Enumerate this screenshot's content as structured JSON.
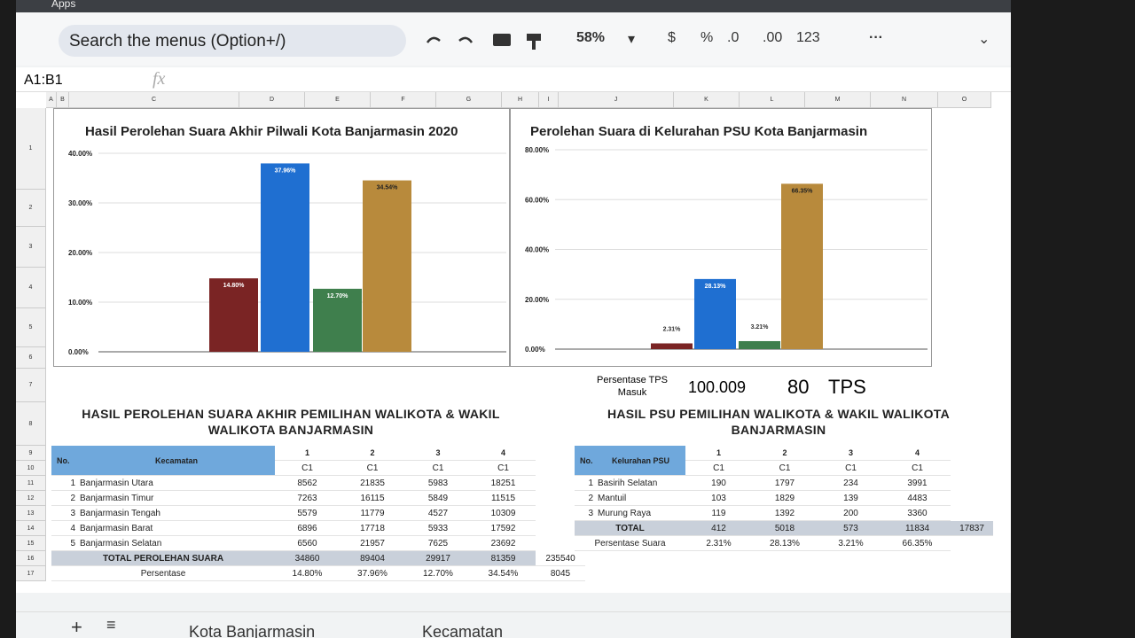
{
  "browser": {
    "bookmarks": [
      "Apps"
    ]
  },
  "toolbar": {
    "search": "Search the menus (Option+/)",
    "zoom": "58%",
    "format_buttons": [
      "$",
      "%",
      ".0",
      ".00",
      "123"
    ]
  },
  "formula_bar": {
    "name_box": "A1:B1",
    "fx": "fx"
  },
  "columns": [
    "A",
    "B",
    "C",
    "D",
    "E",
    "F",
    "G",
    "H",
    "I",
    "J",
    "K",
    "L",
    "M",
    "N",
    "O"
  ],
  "rows": [
    "1",
    "2",
    "3",
    "4",
    "5",
    "6",
    "7",
    "8",
    "9",
    "10",
    "11",
    "12",
    "13",
    "14",
    "15",
    "16",
    "17"
  ],
  "charts": [
    {
      "type": "bar",
      "title": "Hasil Perolehan Suara Akhir Pilwali Kota Banjarmasin 2020",
      "values": [
        14.8,
        37.96,
        12.7,
        34.54
      ],
      "value_labels": [
        "14.80%",
        "37.96%",
        "12.70%",
        "34.54%"
      ],
      "colors": [
        "#7a2424",
        "#1f6fd1",
        "#3f7f4d",
        "#b88a3c"
      ],
      "ylim": [
        0,
        40
      ],
      "yticks": [
        {
          "value": 0,
          "label": "0.00%"
        },
        {
          "value": 10,
          "label": "10.00%"
        },
        {
          "value": 20,
          "label": "20.00%"
        },
        {
          "value": 30,
          "label": "30.00%"
        },
        {
          "value": 40,
          "label": "40.00%"
        }
      ],
      "grid": true
    },
    {
      "type": "bar",
      "title": "Perolehan Suara di Kelurahan PSU Kota Banjarmasin",
      "values": [
        2.31,
        28.13,
        3.21,
        66.35
      ],
      "value_labels": [
        "2.31%",
        "28.13%",
        "3.21%",
        "66.35%"
      ],
      "colors": [
        "#7a2424",
        "#1f6fd1",
        "#3f7f4d",
        "#b88a3c"
      ],
      "ylim": [
        0,
        80
      ],
      "yticks": [
        {
          "value": 0,
          "label": "0.00%"
        },
        {
          "value": 20,
          "label": "20.00%"
        },
        {
          "value": 40,
          "label": "40.00%"
        },
        {
          "value": 60,
          "label": "60.00%"
        },
        {
          "value": 80,
          "label": "80.00%"
        }
      ],
      "grid": true
    }
  ],
  "tps": {
    "label": "Persentase TPS Masuk",
    "percent": "100.009",
    "count": "80",
    "unit": "TPS"
  },
  "tables": [
    {
      "title": "HASIL PEROLEHAN SUARA AKHIR PEMILIHAN WALIKOTA & WAKIL WALIKOTA BANJARMASIN",
      "header": [
        "No.",
        "Kecamatan"
      ],
      "candidates": [
        "1",
        "2",
        "3",
        "4"
      ],
      "sub": [
        "C1",
        "C1",
        "C1",
        "C1"
      ],
      "rows": [
        [
          "1",
          "Banjarmasin Utara",
          "8562",
          "21835",
          "5983",
          "18251"
        ],
        [
          "2",
          "Banjarmasin Timur",
          "7263",
          "16115",
          "5849",
          "11515"
        ],
        [
          "3",
          "Banjarmasin Tengah",
          "5579",
          "11779",
          "4527",
          "10309"
        ],
        [
          "4",
          "Banjarmasin Barat",
          "6896",
          "17718",
          "5933",
          "17592"
        ],
        [
          "5",
          "Banjarmasin Selatan",
          "6560",
          "21957",
          "7625",
          "23692"
        ]
      ],
      "total": {
        "label": "TOTAL PEROLEHAN SUARA",
        "values": [
          "34860",
          "89404",
          "29917",
          "81359"
        ],
        "extra": "235540"
      },
      "percent": {
        "label": "Persentase",
        "values": [
          "14.80%",
          "37.96%",
          "12.70%",
          "34.54%"
        ],
        "extra": "8045"
      }
    },
    {
      "title": "HASIL PSU PEMILIHAN WALIKOTA & WAKIL WALIKOTA BANJARMASIN",
      "header": [
        "No.",
        "Kelurahan PSU"
      ],
      "candidates": [
        "1",
        "2",
        "3",
        "4"
      ],
      "sub": [
        "C1",
        "C1",
        "C1",
        "C1"
      ],
      "rows": [
        [
          "1",
          "Basirih Selatan",
          "190",
          "1797",
          "234",
          "3991"
        ],
        [
          "2",
          "Mantuil",
          "103",
          "1829",
          "139",
          "4483"
        ],
        [
          "3",
          "Murung Raya",
          "119",
          "1392",
          "200",
          "3360"
        ]
      ],
      "total": {
        "label": "TOTAL",
        "values": [
          "412",
          "5018",
          "573",
          "11834"
        ],
        "extra": "17837"
      },
      "percent": {
        "label": "Persentase Suara",
        "values": [
          "2.31%",
          "28.13%",
          "3.21%",
          "66.35%"
        ]
      }
    }
  ],
  "sheet_tabs": [
    "Kota Banjarmasin",
    "Kecamatan"
  ]
}
